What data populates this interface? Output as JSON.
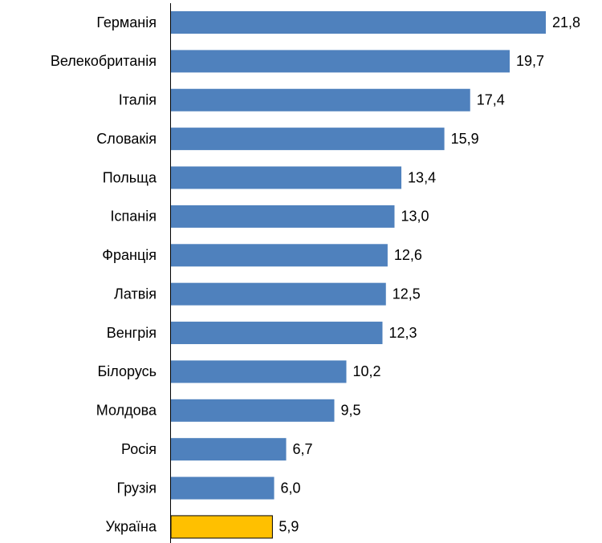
{
  "chart_data": {
    "type": "barh",
    "categories": [
      "Германія",
      "Велекобританія",
      "Італія",
      "Словакія",
      "Польща",
      "Іспанія",
      "Франція",
      "Латвія",
      "Венгрія",
      "Білорусь",
      "Молдова",
      "Росія",
      "Грузія",
      "Україна"
    ],
    "values": [
      21.8,
      19.7,
      17.4,
      15.9,
      13.4,
      13.0,
      12.6,
      12.5,
      12.3,
      10.2,
      9.5,
      6.7,
      6.0,
      5.9
    ],
    "value_labels": [
      "21,8",
      "19,7",
      "17,4",
      "15,9",
      "13,4",
      "13,0",
      "12,6",
      "12,5",
      "12,3",
      "10,2",
      "9,5",
      "6,7",
      "6,0",
      "5,9"
    ],
    "colors": [
      "#4f81bd",
      "#4f81bd",
      "#4f81bd",
      "#4f81bd",
      "#4f81bd",
      "#4f81bd",
      "#4f81bd",
      "#4f81bd",
      "#4f81bd",
      "#4f81bd",
      "#4f81bd",
      "#4f81bd",
      "#4f81bd",
      "#ffc000"
    ]
  }
}
